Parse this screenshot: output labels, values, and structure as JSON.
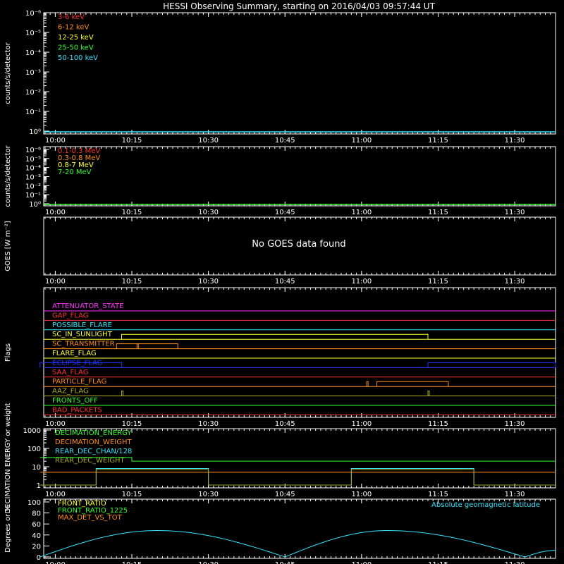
{
  "title": "HESSI Observing Summary, starting on 2016/04/03 09:57:44 UT",
  "time_ticks": [
    "10:00",
    "10:15",
    "10:30",
    "10:45",
    "11:00",
    "11:15",
    "11:30"
  ],
  "colors": {
    "red": "#ff3030",
    "orange": "#ff8c1a",
    "yellow": "#ffff33",
    "green": "#33ff33",
    "cyan": "#33e6ff",
    "blue": "#2233ff",
    "magenta": "#ff33ff",
    "olive": "#aaaa22",
    "white": "#ffffff"
  },
  "chart_data": [
    {
      "type": "line",
      "ylabel": "counts/s/detector",
      "yscale": "log",
      "ytick_labels": [
        "10⁰",
        "10⁻¹",
        "10⁻²",
        "10⁻³",
        "10⁻⁴",
        "10⁻⁵",
        "10⁻⁶"
      ],
      "legend": [
        {
          "name": "3-6 keV",
          "color": "red"
        },
        {
          "name": "6-12 keV",
          "color": "orange"
        },
        {
          "name": "12-25 keV",
          "color": "yellow"
        },
        {
          "name": "25-50 keV",
          "color": "green"
        },
        {
          "name": "50-100 keV",
          "color": "cyan"
        }
      ],
      "baseline_series": "cyan"
    },
    {
      "type": "line",
      "ylabel": "counts/s/detector",
      "yscale": "log",
      "ytick_labels": [
        "10⁰",
        "10⁻¹",
        "10⁻²",
        "10⁻³",
        "10⁻⁴",
        "10⁻⁵",
        "10⁻⁶"
      ],
      "legend": [
        {
          "name": "0.1-0.3 MeV",
          "color": "red"
        },
        {
          "name": "0.3-0.8 MeV",
          "color": "orange"
        },
        {
          "name": "0.8-7 MeV",
          "color": "yellow"
        },
        {
          "name": "7-20 MeV",
          "color": "green"
        }
      ],
      "baseline_series": "green"
    },
    {
      "type": "line",
      "ylabel": "GOES [W m⁻²]",
      "message": "No GOES data found"
    },
    {
      "type": "line",
      "ylabel": "Flags",
      "flags": [
        {
          "name": "ATTENUATOR_STATE",
          "color": "magenta",
          "segments": []
        },
        {
          "name": "GAP_FLAG",
          "color": "red",
          "segments": []
        },
        {
          "name": "POSSIBLE_FLARE",
          "color": "cyan",
          "segments": []
        },
        {
          "name": "SC_IN_SUNLIGHT",
          "color": "yellow",
          "segments": [
            [
              "10:13",
              "11:13"
            ]
          ]
        },
        {
          "name": "SC_TRANSMITTER",
          "color": "orange",
          "segments": [
            [
              "10:12",
              "10:24"
            ]
          ],
          "spikes": [
            "10:16"
          ]
        },
        {
          "name": "FLARE_FLAG",
          "color": "yellow",
          "segments": []
        },
        {
          "name": "ECLIPSE_FLAG",
          "color": "blue",
          "segments": [
            [
              "09:57",
              "10:13"
            ],
            [
              "11:13",
              "11:38"
            ]
          ]
        },
        {
          "name": "SAA_FLAG",
          "color": "red",
          "segments": []
        },
        {
          "name": "PARTICLE_FLAG",
          "color": "orange",
          "segments": [
            [
              "11:03",
              "11:17"
            ]
          ],
          "spikes": [
            "11:01"
          ]
        },
        {
          "name": "AAZ_FLAG",
          "color": "olive",
          "segments": [],
          "spikes": [
            "10:13",
            "11:13"
          ]
        },
        {
          "name": "FRONTS_OFF",
          "color": "green",
          "segments": []
        },
        {
          "name": "BAD_PACKETS",
          "color": "red",
          "segments": []
        }
      ]
    },
    {
      "type": "line",
      "ylabel": "DECIMATION ENERGY or weight",
      "yscale": "log",
      "ylim": [
        1,
        1000
      ],
      "ytick_labels": [
        "1",
        "10",
        "100",
        "1000"
      ],
      "legend": [
        {
          "name": "DECIMATION_ENERGY",
          "color": "green"
        },
        {
          "name": "DECIMATION_WEIGHT",
          "color": "orange"
        },
        {
          "name": "REAR_DEC_CHAN/128",
          "color": "cyan"
        },
        {
          "name": "REAR_DEC_WEIGHT",
          "color": "olive"
        }
      ],
      "series": [
        {
          "color": "green",
          "points": [
            [
              "09:57",
              32
            ],
            [
              "10:15",
              32
            ],
            [
              "10:15",
              20
            ],
            [
              "11:38",
              20
            ]
          ]
        },
        {
          "color": "orange",
          "points": [
            [
              "09:57",
              5
            ],
            [
              "11:38",
              5
            ]
          ]
        },
        {
          "color": "cyan",
          "points": [
            [
              "10:08",
              1
            ],
            [
              "10:08",
              8
            ],
            [
              "10:30",
              8
            ],
            [
              "10:30",
              1
            ],
            [
              "10:58",
              1
            ],
            [
              "10:58",
              8
            ],
            [
              "11:22",
              8
            ],
            [
              "11:22",
              1
            ]
          ]
        },
        {
          "color": "olive",
          "points": [
            [
              "09:57",
              1
            ],
            [
              "10:08",
              1
            ],
            [
              "10:08",
              7
            ],
            [
              "10:30",
              7
            ],
            [
              "10:30",
              1
            ],
            [
              "10:58",
              1
            ],
            [
              "10:58",
              7
            ],
            [
              "11:22",
              7
            ],
            [
              "11:22",
              1
            ],
            [
              "11:38",
              1
            ]
          ]
        }
      ]
    },
    {
      "type": "line",
      "ylabel": "Degrees or %",
      "ylim": [
        0,
        100
      ],
      "ytick_labels": [
        "0",
        "20",
        "40",
        "60",
        "80",
        "100"
      ],
      "legend": [
        {
          "name": "FRONT_RATIO",
          "color": "yellow"
        },
        {
          "name": "FRONT_RATIO_1225",
          "color": "green"
        },
        {
          "name": "MAX_DET_VS_TOT",
          "color": "orange"
        }
      ],
      "right_legend": {
        "name": "Absolute geomagnetic latitude",
        "color": "cyan"
      },
      "series": [
        {
          "name": "Absolute geomagnetic latitude",
          "color": "cyan",
          "points": [
            [
              "09:57",
              0
            ],
            [
              "10:20",
              48
            ],
            [
              "10:45",
              0
            ],
            [
              "11:05",
              48
            ],
            [
              "11:32",
              0
            ],
            [
              "11:38",
              12
            ]
          ]
        }
      ]
    }
  ]
}
